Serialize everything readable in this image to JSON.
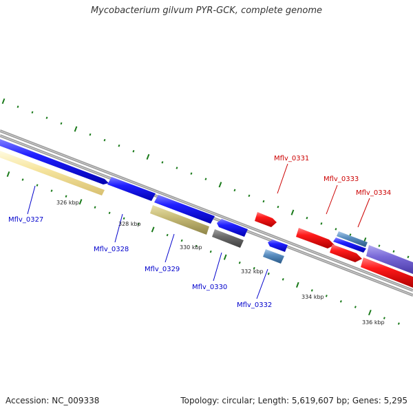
{
  "title": "Mycobacterium gilvum PYR-GCK, complete genome",
  "footer": {
    "accession": "Accession: NC_009338",
    "summary": "Topology: circular; Length: 5,619,607 bp; Genes: 5,295"
  },
  "colors": {
    "forward_gene": "#ff0000",
    "reverse_gene": "#0000ff",
    "rna_or_pseudo": "#f5e08a",
    "tick": "#1a7a1a",
    "backbone": "#888888"
  },
  "scale_ticks": [
    "326 kbp",
    "328 kbp",
    "330 kbp",
    "332 kbp",
    "334 kbp",
    "336 kbp"
  ],
  "gene_labels": [
    {
      "name": "Mflv_0327",
      "strand": "reverse"
    },
    {
      "name": "Mflv_0328",
      "strand": "reverse"
    },
    {
      "name": "Mflv_0329",
      "strand": "reverse"
    },
    {
      "name": "Mflv_0330",
      "strand": "reverse"
    },
    {
      "name": "Mflv_0331",
      "strand": "forward"
    },
    {
      "name": "Mflv_0332",
      "strand": "reverse"
    },
    {
      "name": "Mflv_0333",
      "strand": "forward"
    },
    {
      "name": "Mflv_0334",
      "strand": "forward"
    }
  ]
}
